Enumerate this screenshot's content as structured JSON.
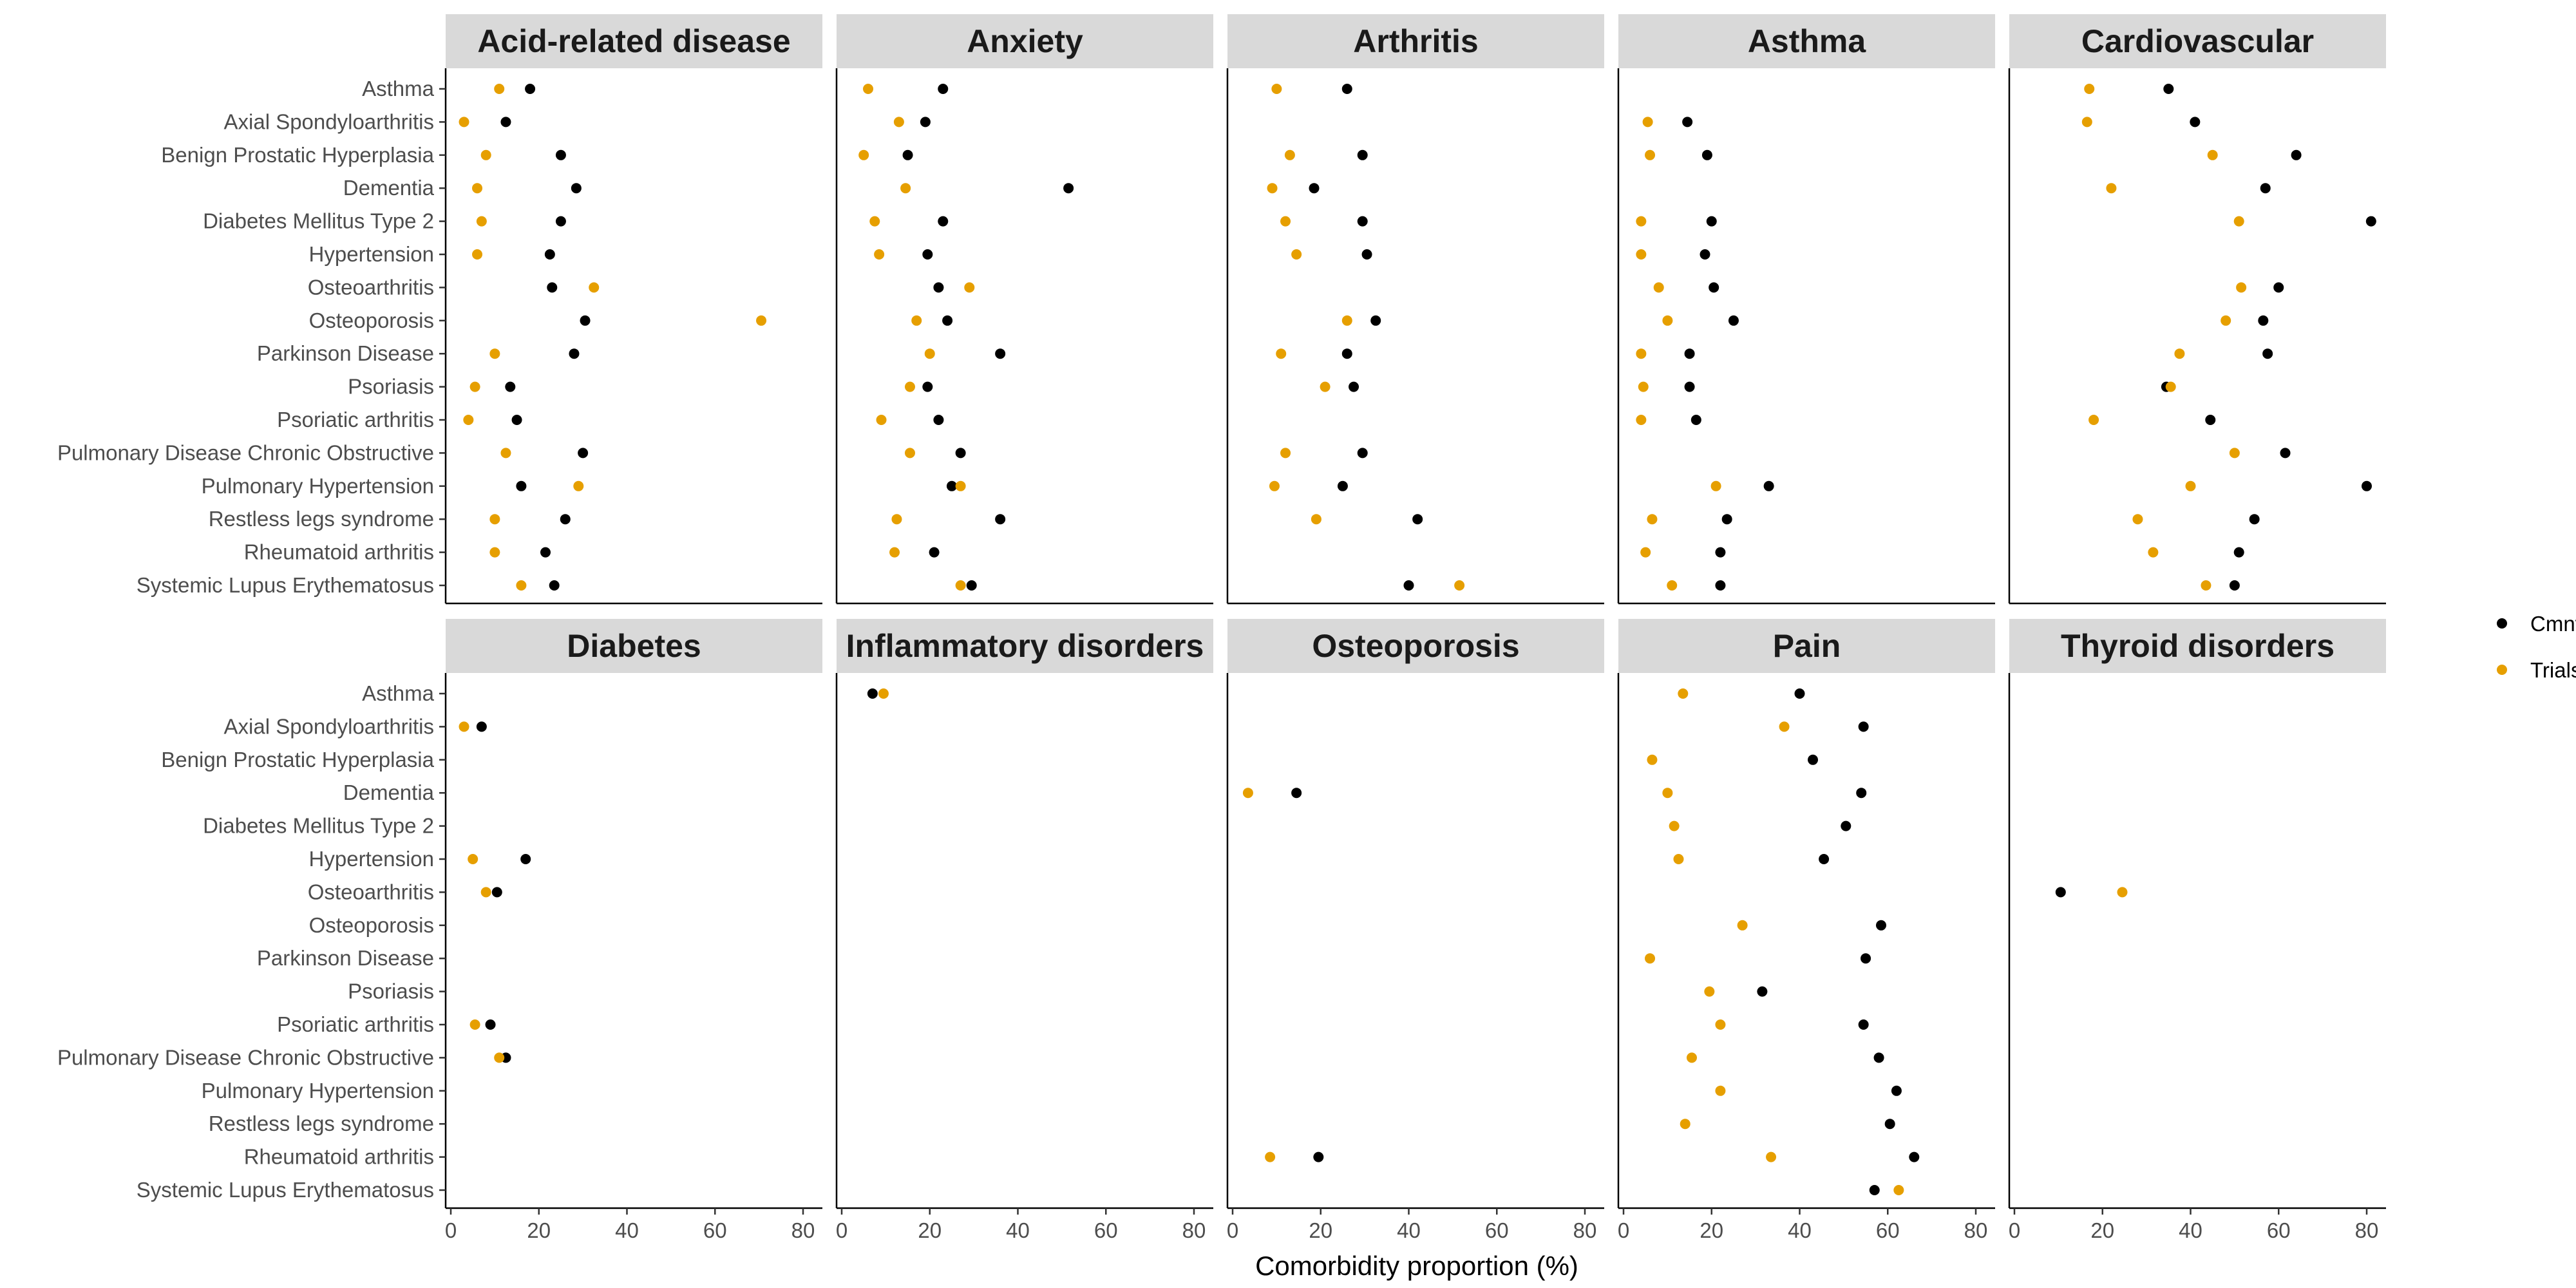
{
  "chart_data": {
    "type": "scatter",
    "layout": "facet-grid",
    "xlabel": "Comorbidity proportion (%)",
    "xlim": [
      0,
      85
    ],
    "x_ticks": [
      0,
      20,
      40,
      60,
      80
    ],
    "grid": false,
    "legend_position": "right",
    "categories": [
      "Asthma",
      "Axial Spondyloarthritis",
      "Benign Prostatic Hyperplasia",
      "Dementia",
      "Diabetes Mellitus Type 2",
      "Hypertension",
      "Osteoarthritis",
      "Osteoporosis",
      "Parkinson Disease",
      "Psoriasis",
      "Psoriatic arthritis",
      "Pulmonary Disease Chronic Obstructive",
      "Pulmonary Hypertension",
      "Restless legs syndrome",
      "Rheumatoid arthritis",
      "Systemic Lupus Erythematosus"
    ],
    "series": [
      {
        "name": "Cmnty",
        "color": "#000000"
      },
      {
        "name": "Trials",
        "color": "#E69F00"
      }
    ],
    "panels": [
      {
        "title": "Acid-related disease",
        "Cmnty": [
          18,
          12.5,
          25,
          28.5,
          25,
          22.5,
          23,
          30.5,
          28,
          13.5,
          15,
          30,
          16,
          26,
          21.5,
          23.5
        ],
        "Trials": [
          11,
          3,
          8,
          6,
          7,
          6,
          32.5,
          70.5,
          10,
          5.5,
          4,
          12.5,
          29,
          10,
          10,
          16
        ]
      },
      {
        "title": "Anxiety",
        "Cmnty": [
          23,
          19,
          15,
          51.5,
          23,
          19.5,
          22,
          24,
          36,
          19.5,
          22,
          27,
          25,
          36,
          21,
          29.5
        ],
        "Trials": [
          6,
          13,
          5,
          14.5,
          7.5,
          8.5,
          29,
          17,
          20,
          15.5,
          9,
          15.5,
          27,
          12.5,
          12,
          27
        ]
      },
      {
        "title": "Arthritis",
        "Cmnty": [
          26,
          null,
          29.5,
          18.5,
          29.5,
          30.5,
          null,
          32.5,
          26,
          27.5,
          null,
          29.5,
          25,
          42,
          null,
          40
        ],
        "Trials": [
          10,
          null,
          13,
          9,
          12,
          14.5,
          null,
          26,
          11,
          21,
          null,
          12,
          9.5,
          19,
          null,
          51.5
        ]
      },
      {
        "title": "Asthma",
        "Cmnty": [
          null,
          14.5,
          19,
          null,
          20,
          18.5,
          20.5,
          25,
          15,
          15,
          16.5,
          null,
          33,
          23.5,
          22,
          22
        ],
        "Trials": [
          null,
          5.5,
          6,
          null,
          4,
          4,
          8,
          10,
          4,
          4.5,
          4,
          null,
          21,
          6.5,
          5,
          11
        ]
      },
      {
        "title": "Cardiovascular",
        "Cmnty": [
          35,
          41,
          64,
          57,
          81,
          null,
          60,
          56.5,
          57.5,
          34.5,
          44.5,
          61.5,
          80,
          54.5,
          51,
          50
        ],
        "Trials": [
          17,
          16.5,
          45,
          22,
          51,
          null,
          51.5,
          48,
          37.5,
          35.5,
          18,
          50,
          40,
          28,
          31.5,
          43.5
        ]
      },
      {
        "title": "Diabetes",
        "Cmnty": [
          null,
          7,
          null,
          null,
          null,
          17,
          10.5,
          null,
          null,
          null,
          9,
          12.5,
          null,
          null,
          null,
          null
        ],
        "Trials": [
          null,
          3,
          null,
          null,
          null,
          5,
          8,
          null,
          null,
          null,
          5.5,
          11,
          null,
          null,
          null,
          null
        ]
      },
      {
        "title": "Inflammatory disorders",
        "Cmnty": [
          7,
          null,
          null,
          null,
          null,
          null,
          null,
          null,
          null,
          null,
          null,
          null,
          null,
          null,
          null,
          null
        ],
        "Trials": [
          9.5,
          null,
          null,
          null,
          null,
          null,
          null,
          null,
          null,
          null,
          null,
          null,
          null,
          null,
          null,
          null
        ]
      },
      {
        "title": "Osteoporosis",
        "Cmnty": [
          null,
          null,
          null,
          14.5,
          null,
          null,
          null,
          null,
          null,
          null,
          null,
          null,
          null,
          null,
          19.5,
          null
        ],
        "Trials": [
          null,
          null,
          null,
          3.5,
          null,
          null,
          null,
          null,
          null,
          null,
          null,
          null,
          null,
          null,
          8.5,
          null
        ]
      },
      {
        "title": "Pain",
        "Cmnty": [
          40,
          54.5,
          43,
          54,
          50.5,
          45.5,
          null,
          58.5,
          55,
          31.5,
          54.5,
          58,
          62,
          60.5,
          66,
          57
        ],
        "Trials": [
          13.5,
          36.5,
          6.5,
          10,
          11.5,
          12.5,
          null,
          27,
          6,
          19.5,
          22,
          15.5,
          22,
          14,
          33.5,
          62.5
        ]
      },
      {
        "title": "Thyroid disorders",
        "Cmnty": [
          null,
          null,
          null,
          null,
          null,
          null,
          10.5,
          null,
          null,
          null,
          null,
          null,
          null,
          null,
          null,
          null
        ],
        "Trials": [
          null,
          null,
          null,
          null,
          null,
          null,
          24.5,
          null,
          null,
          null,
          null,
          null,
          null,
          null,
          null,
          null
        ]
      }
    ]
  }
}
